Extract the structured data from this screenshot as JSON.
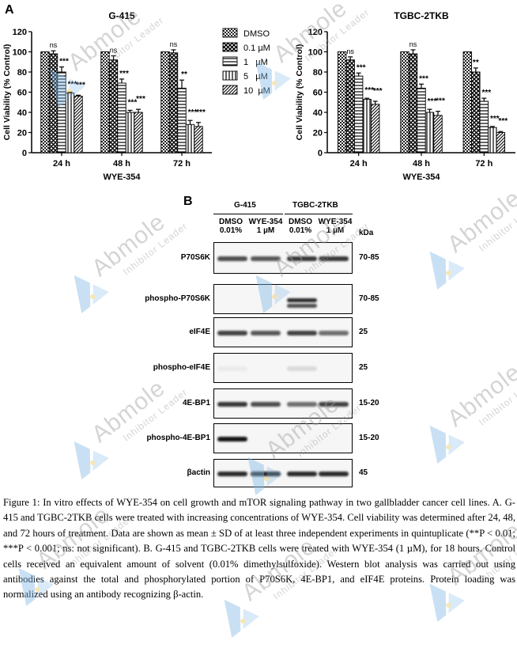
{
  "panel_a_label": "A",
  "panel_b_label": "B",
  "chart_data": [
    {
      "type": "bar",
      "title": "G-415",
      "xlabel": "WYE-354",
      "ylabel": "Cell Viability (% Control)",
      "ylim": [
        0,
        120
      ],
      "yticks": [
        0,
        20,
        40,
        60,
        80,
        100,
        120
      ],
      "categories": [
        "24 h",
        "48 h",
        "72 h"
      ],
      "series": [
        {
          "name": "DMSO",
          "values": [
            100,
            100,
            100
          ],
          "err": [
            0,
            0,
            0
          ]
        },
        {
          "name": "0.1 µM",
          "values": [
            98,
            92,
            99
          ],
          "err": [
            3,
            4,
            3
          ]
        },
        {
          "name": "1 µM",
          "values": [
            80,
            69,
            64
          ],
          "err": [
            5,
            4,
            8
          ]
        },
        {
          "name": "5 µM",
          "values": [
            59,
            40,
            28
          ],
          "err": [
            1,
            2,
            4
          ]
        },
        {
          "name": "10 µM",
          "values": [
            56,
            40,
            26
          ],
          "err": [
            1,
            3,
            4
          ]
        }
      ],
      "significance": [
        [
          "",
          "ns",
          "***",
          "***",
          "***"
        ],
        [
          "",
          "ns",
          "***",
          "***",
          "***"
        ],
        [
          "",
          "ns",
          "**",
          "***",
          "***"
        ]
      ]
    },
    {
      "type": "bar",
      "title": "TGBC-2TKB",
      "xlabel": "WYE-354",
      "ylabel": "Cell Viability (% Control)",
      "ylim": [
        0,
        120
      ],
      "yticks": [
        0,
        20,
        40,
        60,
        80,
        100,
        120
      ],
      "categories": [
        "24 h",
        "48 h",
        "72 h"
      ],
      "series": [
        {
          "name": "DMSO",
          "values": [
            100,
            100,
            100
          ],
          "err": [
            0,
            0,
            0
          ]
        },
        {
          "name": "0.1 µM",
          "values": [
            92,
            98,
            80
          ],
          "err": [
            3,
            4,
            4
          ]
        },
        {
          "name": "1 µM",
          "values": [
            76,
            64,
            51
          ],
          "err": [
            3,
            4,
            3
          ]
        },
        {
          "name": "5 µM",
          "values": [
            53,
            40,
            25
          ],
          "err": [
            1,
            3,
            1
          ]
        },
        {
          "name": "10 µM",
          "values": [
            48,
            37,
            20
          ],
          "err": [
            3,
            4,
            1
          ]
        }
      ],
      "significance": [
        [
          "",
          "ns",
          "***",
          "***",
          "***"
        ],
        [
          "",
          "ns",
          "***",
          "***",
          "***"
        ],
        [
          "",
          "**",
          "***",
          "***",
          "***"
        ]
      ]
    }
  ],
  "legend": [
    "DMSO",
    "0.1 µM",
    "1   µM",
    "5   µM",
    "10  µM"
  ],
  "blot": {
    "cell_lines": [
      "G-415",
      "TGBC-2TKB"
    ],
    "treatments": [
      {
        "name": "DMSO",
        "dose": "0.01%"
      },
      {
        "name": "WYE-354",
        "dose": "1 µM"
      },
      {
        "name": "DMSO",
        "dose": "0.01%"
      },
      {
        "name": "WYE-354",
        "dose": "1 µM"
      }
    ],
    "kda_header": "kDa",
    "rows": [
      {
        "label": "P70S6K",
        "kda": "70-85"
      },
      {
        "label": "phospho-P70S6K",
        "kda": "70-85"
      },
      {
        "label": "eIF4E",
        "kda": "25"
      },
      {
        "label": "phospho-eIF4E",
        "kda": "25"
      },
      {
        "label": "4E-BP1",
        "kda": "15-20"
      },
      {
        "label": "phospho-4E-BP1",
        "kda": "15-20"
      },
      {
        "label": "βactin",
        "kda": "45"
      }
    ]
  },
  "caption": "Figure 1: In vitro effects of WYE-354 on cell growth and mTOR signaling pathway in two gallbladder cancer cell lines. A. G-415 and TGBC-2TKB cells were treated with increasing concentrations of WYE-354. Cell viability was determined after 24, 48, and 72 hours of treatment. Data are shown as mean ± SD of at least three independent experiments in quintuplicate (**P < 0.01; ***P < 0.001; ns: not significant). B. G-415 and TGBC-2TKB cells were treated with WYE-354 (1 µM), for 18 hours. Control cells received an equivalent amount of solvent (0.01% dimethylsulfoxide). Western blot analysis was carried out using antibodies against the total and phosphorylated portion of P70S6K, 4E-BP1, and eIF4E proteins. Protein loading was normalized using an antibody recognizing β-actin.",
  "watermark": {
    "brand": "Abmole",
    "tagline": "Inhibitor Leader",
    "color": "#7fb7e6"
  }
}
